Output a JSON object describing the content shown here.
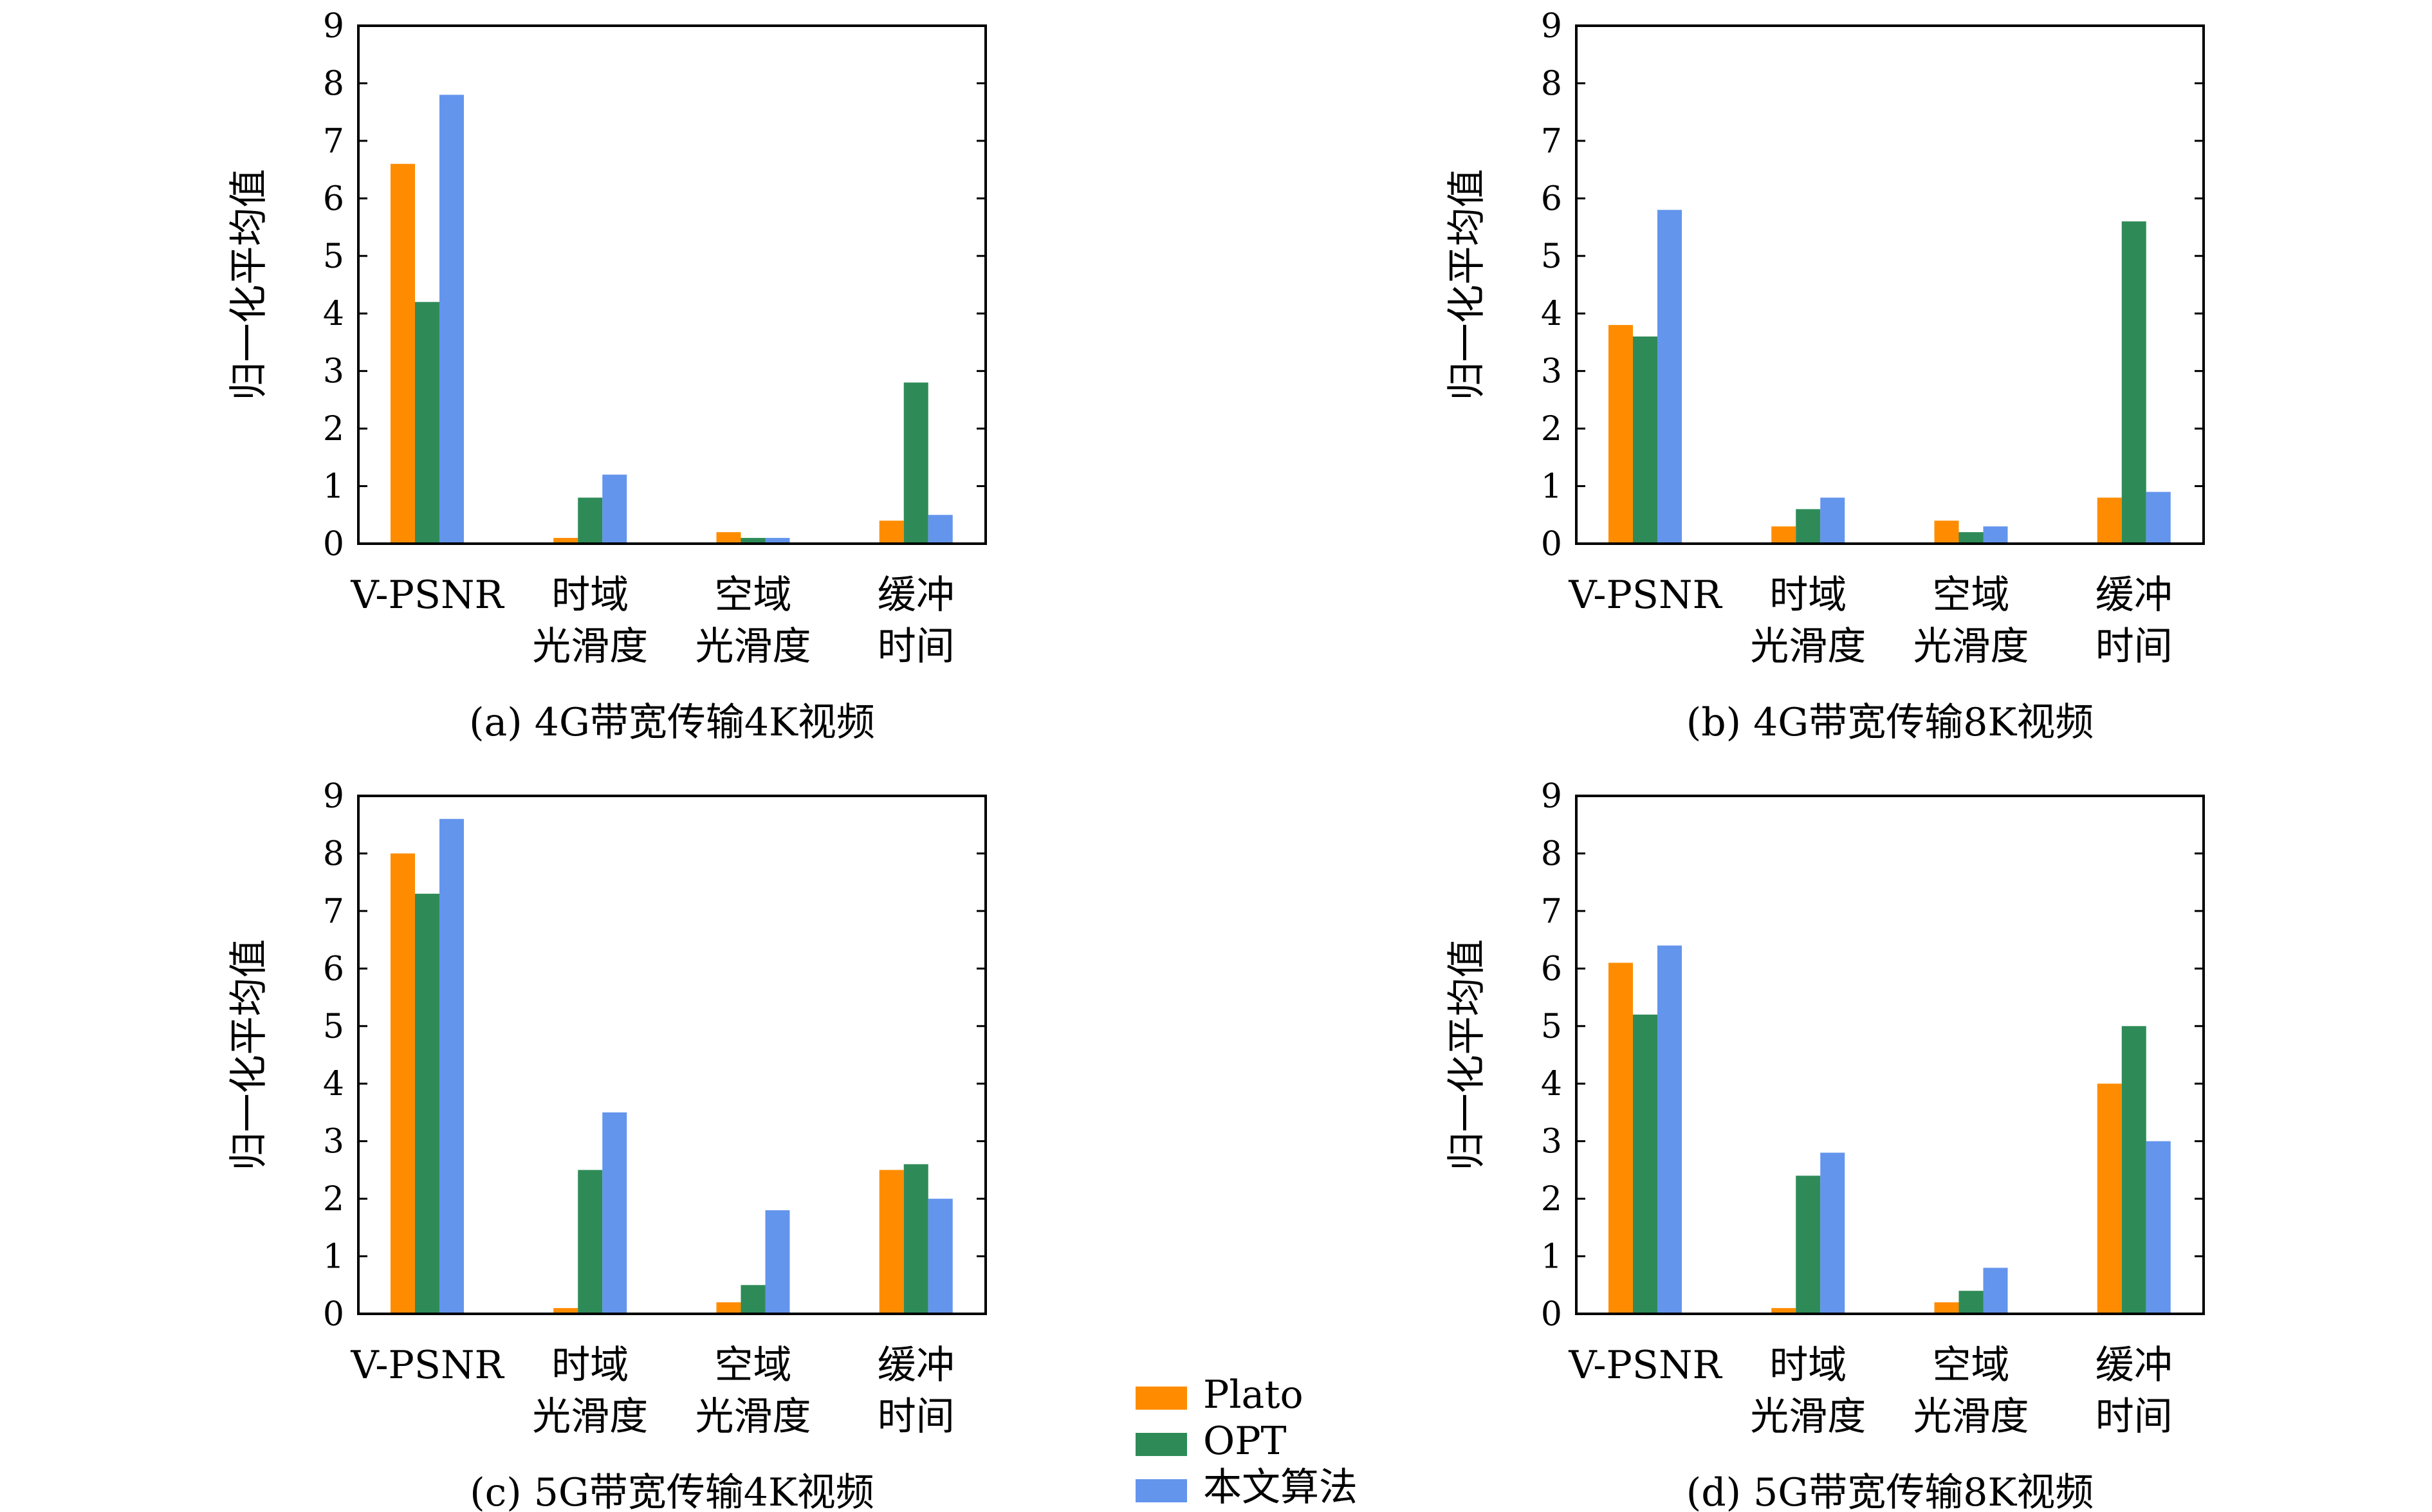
{
  "colors": {
    "plato": "#FF8C00",
    "opt": "#2E8B57",
    "ours": "#6495ED"
  },
  "legend": [
    {
      "label": "Plato",
      "color": "#FF8C00"
    },
    {
      "label": "OPT",
      "color": "#2E8B57"
    },
    {
      "label": "本文算法",
      "color": "#6495ED"
    }
  ],
  "chart_data": [
    {
      "type": "bar",
      "caption": "(a) 4G带宽传输4K视频",
      "ylabel": "归一化平均值",
      "ylim": [
        0,
        9
      ],
      "yticks": [
        0,
        1,
        2,
        3,
        4,
        5,
        6,
        7,
        8,
        9
      ],
      "categories": [
        [
          "V-PSNR"
        ],
        [
          "时域",
          "光滑度"
        ],
        [
          "空域",
          "光滑度"
        ],
        [
          "缓冲",
          "时间"
        ]
      ],
      "series": [
        {
          "name": "Plato",
          "values": [
            6.6,
            0.1,
            0.2,
            0.4
          ]
        },
        {
          "name": "OPT",
          "values": [
            4.2,
            0.8,
            0.1,
            2.8
          ]
        },
        {
          "name": "本文算法",
          "values": [
            7.8,
            1.2,
            0.1,
            0.5
          ]
        }
      ]
    },
    {
      "type": "bar",
      "caption": "(b) 4G带宽传输8K视频",
      "ylabel": "归一化平均值",
      "ylim": [
        0,
        9
      ],
      "yticks": [
        0,
        1,
        2,
        3,
        4,
        5,
        6,
        7,
        8,
        9
      ],
      "categories": [
        [
          "V-PSNR"
        ],
        [
          "时域",
          "光滑度"
        ],
        [
          "空域",
          "光滑度"
        ],
        [
          "缓冲",
          "时间"
        ]
      ],
      "series": [
        {
          "name": "Plato",
          "values": [
            3.8,
            0.3,
            0.4,
            0.8
          ]
        },
        {
          "name": "OPT",
          "values": [
            3.6,
            0.6,
            0.2,
            5.6
          ]
        },
        {
          "name": "本文算法",
          "values": [
            5.8,
            0.8,
            0.3,
            0.9
          ]
        }
      ]
    },
    {
      "type": "bar",
      "caption": "(c) 5G带宽传输4K视频",
      "ylabel": "归一化平均值",
      "ylim": [
        0,
        9
      ],
      "yticks": [
        0,
        1,
        2,
        3,
        4,
        5,
        6,
        7,
        8,
        9
      ],
      "categories": [
        [
          "V-PSNR"
        ],
        [
          "时域",
          "光滑度"
        ],
        [
          "空域",
          "光滑度"
        ],
        [
          "缓冲",
          "时间"
        ]
      ],
      "series": [
        {
          "name": "Plato",
          "values": [
            8.0,
            0.1,
            0.2,
            2.5
          ]
        },
        {
          "name": "OPT",
          "values": [
            7.3,
            2.5,
            0.5,
            2.6
          ]
        },
        {
          "name": "本文算法",
          "values": [
            8.6,
            3.5,
            1.8,
            2.0
          ]
        }
      ]
    },
    {
      "type": "bar",
      "caption": "(d) 5G带宽传输8K视频",
      "ylabel": "归一化平均值",
      "ylim": [
        0,
        9
      ],
      "yticks": [
        0,
        1,
        2,
        3,
        4,
        5,
        6,
        7,
        8,
        9
      ],
      "categories": [
        [
          "V-PSNR"
        ],
        [
          "时域",
          "光滑度"
        ],
        [
          "空域",
          "光滑度"
        ],
        [
          "缓冲",
          "时间"
        ]
      ],
      "series": [
        {
          "name": "Plato",
          "values": [
            6.1,
            0.1,
            0.2,
            4.0
          ]
        },
        {
          "name": "OPT",
          "values": [
            5.2,
            2.4,
            0.4,
            5.0
          ]
        },
        {
          "name": "本文算法",
          "values": [
            6.4,
            2.8,
            0.8,
            3.0
          ]
        }
      ]
    }
  ]
}
